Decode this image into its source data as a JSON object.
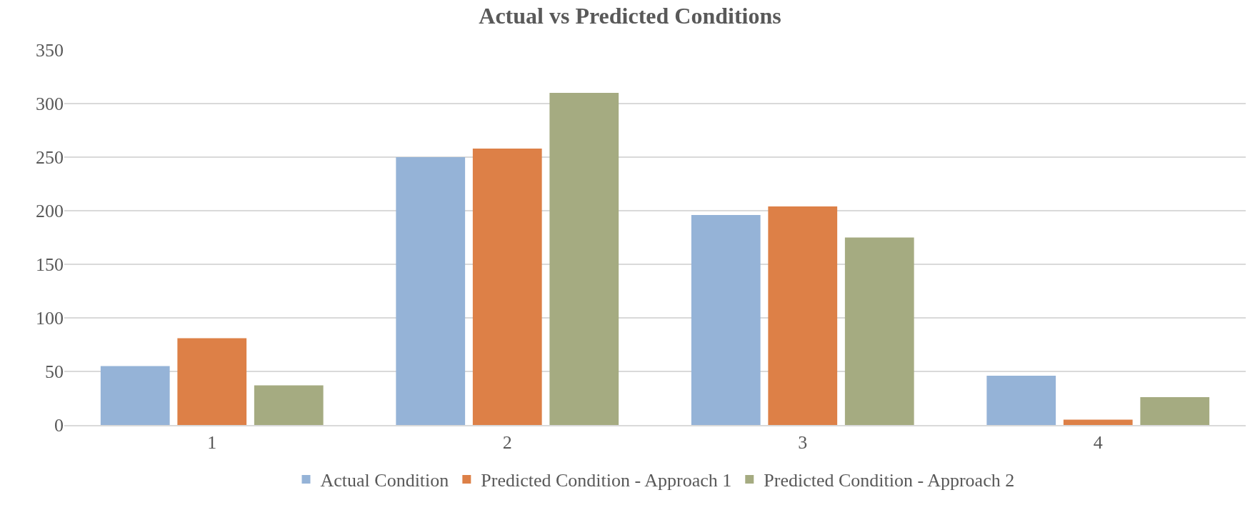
{
  "chart_data": {
    "type": "bar",
    "title": "Actual vs Predicted Conditions",
    "categories": [
      "1",
      "2",
      "3",
      "4"
    ],
    "series": [
      {
        "name": "Actual Condition",
        "color": "#95b3d7",
        "values": [
          55,
          250,
          196,
          46
        ]
      },
      {
        "name": "Predicted Condition - Approach 1",
        "color": "#dd8047",
        "values": [
          81,
          258,
          204,
          5
        ]
      },
      {
        "name": "Predicted Condition - Approach 2",
        "color": "#a5ab81",
        "values": [
          37,
          310,
          175,
          26
        ]
      }
    ],
    "ylim": [
      0,
      350
    ],
    "yticks": [
      0,
      50,
      100,
      150,
      200,
      250,
      300,
      350
    ],
    "grid": "y",
    "legend": "bottom"
  }
}
